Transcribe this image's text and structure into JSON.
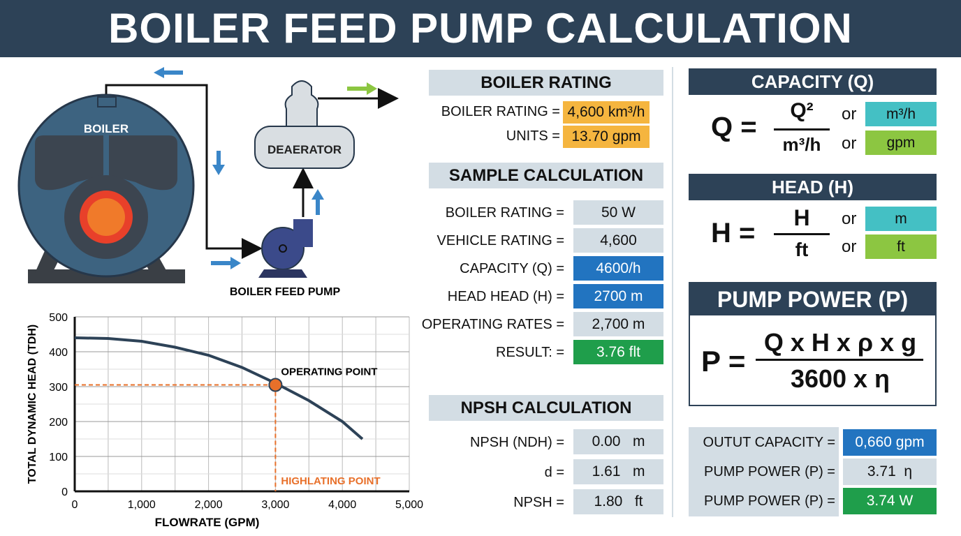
{
  "title": "BOILER FEED PUMP CALCULATION",
  "diagram": {
    "boiler": "BOILER",
    "deaerator": "DEAERATOR",
    "pump": "BOILER FEED PUMP"
  },
  "boiler_rating": {
    "heading": "BOILER RATING",
    "rows": [
      {
        "label": "BOILER RATING =",
        "value": "4,600 km³/h"
      },
      {
        "label": "UNITS =",
        "value": "13.70 gpm"
      }
    ]
  },
  "sample": {
    "heading": "SAMPLE CALCULATION",
    "rows": [
      {
        "label": "BOILER RATING =",
        "value": "50 W",
        "style": "gray"
      },
      {
        "label": "VEHICLE RATING =",
        "value": "4,600",
        "style": "gray"
      },
      {
        "label": "CAPACITY (Q) =",
        "value": "4600/h",
        "style": "blue"
      },
      {
        "label": "HEAD HEAD (H) =",
        "value": "2700 m",
        "style": "blue"
      },
      {
        "label": "OPERATING RATES =",
        "value": "2,700 m",
        "style": "gray"
      },
      {
        "label": "RESULT: =",
        "value": "3.76 flt",
        "style": "green"
      }
    ]
  },
  "npsh": {
    "heading": "NPSH CALCULATION",
    "rows": [
      {
        "label": "NPSH (NDH) =",
        "value": "0.00   m"
      },
      {
        "label": "d =",
        "value": "1.61   m"
      },
      {
        "label": "NPSH =",
        "value": "1.80   ft"
      }
    ]
  },
  "capacity": {
    "heading": "CAPACITY (Q)",
    "lhs": "Q =",
    "num": "Q²",
    "den": "m³/h",
    "or1": "or",
    "opt1": "m³/h",
    "or2": "or",
    "opt2": "gpm"
  },
  "head": {
    "heading": "HEAD (H)",
    "lhs": "H =",
    "num": "H",
    "den": "ft",
    "or1": "or",
    "opt1": "m",
    "or2": "or",
    "opt2": "ft"
  },
  "power": {
    "heading": "PUMP POWER (P)",
    "lhs": "P =",
    "num": "Q x H x ρ x g",
    "den": "3600 x η"
  },
  "results": [
    {
      "label": "OUTUT CAPACITY =",
      "value": "0,660 gpm",
      "style": "blue"
    },
    {
      "label": "PUMP POWER (P) =",
      "value": "3.71  η",
      "style": "gray"
    },
    {
      "label": "PUMP POWER (P) =",
      "value": "3.74 W",
      "style": "green"
    }
  ],
  "chart_data": {
    "type": "line",
    "xlabel": "FLOWRATE (GPM)",
    "ylabel": "TOTAL DYNAMIC HEAD (TDH)",
    "xlim": [
      0,
      5000
    ],
    "ylim": [
      0,
      500
    ],
    "xticks": [
      "0",
      "1,000",
      "2,000",
      "3,000",
      "4,000",
      "5,000"
    ],
    "yticks": [
      "0",
      "100",
      "200",
      "300",
      "400",
      "500"
    ],
    "grid": true,
    "series": [
      {
        "x": [
          0,
          500,
          1000,
          1500,
          2000,
          2500,
          3000,
          3500,
          4000,
          4300
        ],
        "y": [
          440,
          438,
          430,
          413,
          390,
          355,
          310,
          260,
          200,
          150
        ]
      }
    ],
    "operating_point": {
      "x": 3000,
      "y": 305,
      "label": "OPERATING POINT"
    },
    "highlight_label": "HIGHLATING POINT",
    "colors": {
      "curve": "#2d4257",
      "point": "#e8702a"
    }
  }
}
